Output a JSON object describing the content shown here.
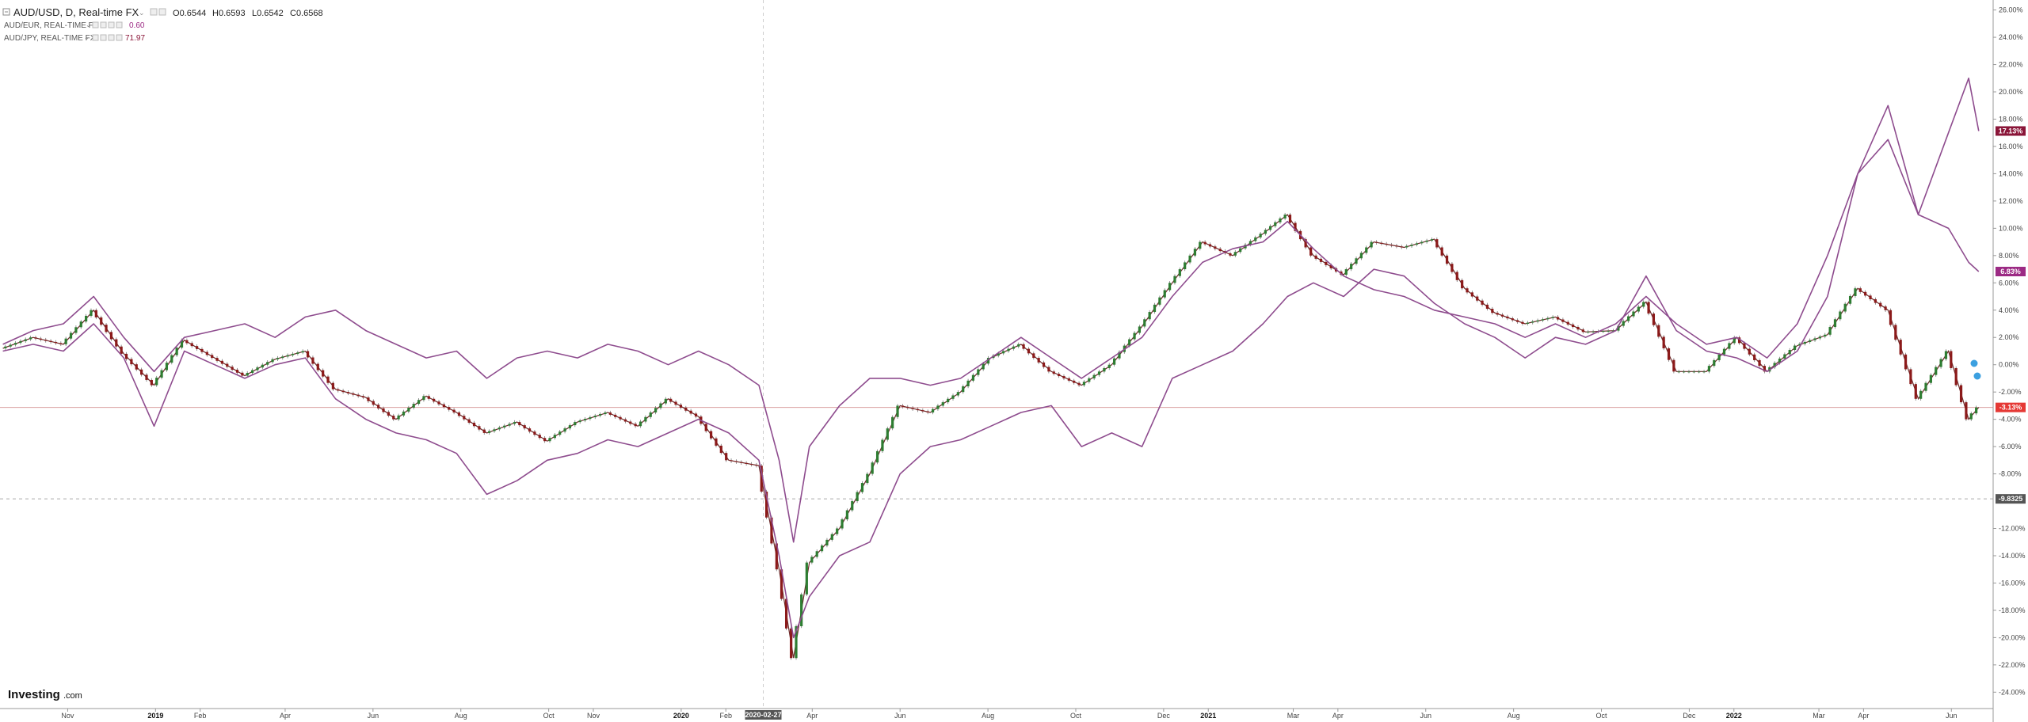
{
  "header": {
    "main_symbol": "AUD/USD, D, Real-time FX",
    "ohlc": [
      {
        "label": "O",
        "value": "0.6544"
      },
      {
        "label": "H",
        "value": "0.6593"
      },
      {
        "label": "L",
        "value": "0.6542"
      },
      {
        "label": "C",
        "value": "0.6568"
      }
    ],
    "comparisons": [
      {
        "label": "AUD/EUR, REAL-TIME FX",
        "value": "0.60"
      },
      {
        "label": "AUD/JPY, REAL-TIME FX",
        "value": "71.97"
      }
    ]
  },
  "brand": {
    "name": "Investing",
    "suffix": ".com"
  },
  "colors": {
    "up": "#2e7d32",
    "down": "#8b1a1a",
    "compare_line": "#8e4c8e",
    "badge_aud_eur": "#9c2a84",
    "badge_aud_jpy": "#8a1538",
    "badge_aud_usd": "#e53935",
    "badge_neutral": "#555555"
  },
  "chart_data": {
    "type": "line",
    "x_tick_labels": [
      {
        "label": "Nov",
        "date": "2018-11-01"
      },
      {
        "label": "2019",
        "date": "2019-01-01",
        "bold": true
      },
      {
        "label": "Feb",
        "date": "2019-02-01"
      },
      {
        "label": "Apr",
        "date": "2019-04-01"
      },
      {
        "label": "Jun",
        "date": "2019-06-01"
      },
      {
        "label": "Aug",
        "date": "2019-08-01"
      },
      {
        "label": "Oct",
        "date": "2019-10-01"
      },
      {
        "label": "Nov",
        "date": "2019-11-01"
      },
      {
        "label": "2020",
        "date": "2020-01-01",
        "bold": true
      },
      {
        "label": "Feb",
        "date": "2020-02-01"
      },
      {
        "label": "Apr",
        "date": "2020-04-01"
      },
      {
        "label": "Jun",
        "date": "2020-06-01"
      },
      {
        "label": "Aug",
        "date": "2020-08-01"
      },
      {
        "label": "Oct",
        "date": "2020-10-01"
      },
      {
        "label": "Dec",
        "date": "2020-12-01"
      },
      {
        "label": "2021",
        "date": "2021-01-01",
        "bold": true
      },
      {
        "label": "Mar",
        "date": "2021-03-01"
      },
      {
        "label": "Apr",
        "date": "2021-04-01"
      },
      {
        "label": "Jun",
        "date": "2021-06-01"
      },
      {
        "label": "Aug",
        "date": "2021-08-01"
      },
      {
        "label": "Oct",
        "date": "2021-10-01"
      },
      {
        "label": "Dec",
        "date": "2021-12-01"
      },
      {
        "label": "2022",
        "date": "2022-01-01",
        "bold": true
      },
      {
        "label": "Mar",
        "date": "2022-03-01"
      },
      {
        "label": "Apr",
        "date": "2022-04-01"
      },
      {
        "label": "Jun",
        "date": "2022-06-01"
      }
    ],
    "crosshair_date_label": "2020-02-27",
    "crosshair_date": "2020-02-27",
    "xlim": [
      "2018-09-15",
      "2022-06-30"
    ],
    "y_ticks": [
      26,
      24,
      22,
      20,
      18,
      16,
      14,
      12,
      10,
      8,
      6,
      4,
      2,
      0,
      -2,
      -4,
      -6,
      -8,
      -12,
      -14,
      -16,
      -18,
      -20,
      -22,
      -24
    ],
    "y_tick_labels": [
      "26.00%",
      "24.00%",
      "22.00%",
      "20.00%",
      "18.00%",
      "16.00%",
      "14.00%",
      "12.00%",
      "10.00%",
      "8.00%",
      "6.00%",
      "4.00%",
      "2.00%",
      "0.00%",
      "-2.00%",
      "-4.00%",
      "-6.00%",
      "-8.00%",
      "-12.00%",
      "-14.00%",
      "-16.00%",
      "-18.00%",
      "-20.00%",
      "-22.00%",
      "-24.00%"
    ],
    "ylim": [
      -25.2,
      26.5
    ],
    "y_unit": "%",
    "crosshair_level": -9.8325,
    "crosshair_level_label": "-9.8325",
    "last_value_badges": [
      {
        "series": "AUD/JPY",
        "value": 17.13,
        "label": "17.13%"
      },
      {
        "series": "AUD/EUR",
        "value": 6.83,
        "label": "6.83%"
      },
      {
        "series": "AUD/USD",
        "value": -3.13,
        "label": "-3.13%"
      }
    ],
    "series": [
      {
        "name": "AUD/USD",
        "style": "candlestick",
        "x": [
          "2018-09-17",
          "2018-10-08",
          "2018-10-29",
          "2018-11-19",
          "2018-12-10",
          "2018-12-31",
          "2019-01-21",
          "2019-02-11",
          "2019-03-04",
          "2019-03-25",
          "2019-04-15",
          "2019-05-06",
          "2019-05-27",
          "2019-06-17",
          "2019-07-08",
          "2019-07-29",
          "2019-08-19",
          "2019-09-09",
          "2019-09-30",
          "2019-10-21",
          "2019-11-11",
          "2019-12-02",
          "2019-12-23",
          "2020-01-13",
          "2020-02-03",
          "2020-02-24",
          "2020-03-09",
          "2020-03-19",
          "2020-03-30",
          "2020-04-20",
          "2020-05-11",
          "2020-06-01",
          "2020-06-22",
          "2020-07-13",
          "2020-08-03",
          "2020-08-24",
          "2020-09-14",
          "2020-10-05",
          "2020-10-26",
          "2020-11-16",
          "2020-12-07",
          "2020-12-28",
          "2021-01-18",
          "2021-02-08",
          "2021-02-25",
          "2021-03-15",
          "2021-04-05",
          "2021-04-26",
          "2021-05-17",
          "2021-06-07",
          "2021-06-28",
          "2021-07-19",
          "2021-08-09",
          "2021-08-30",
          "2021-09-20",
          "2021-10-11",
          "2021-11-01",
          "2021-11-22",
          "2021-12-13",
          "2022-01-03",
          "2022-01-24",
          "2022-02-14",
          "2022-03-07",
          "2022-03-28",
          "2022-04-18",
          "2022-05-09",
          "2022-05-30",
          "2022-06-13",
          "2022-06-20"
        ],
        "values": [
          1.2,
          2.0,
          1.5,
          4.0,
          0.8,
          -1.5,
          1.8,
          0.5,
          -0.8,
          0.4,
          1.0,
          -1.8,
          -2.4,
          -4.0,
          -2.3,
          -3.5,
          -5.0,
          -4.2,
          -5.6,
          -4.2,
          -3.5,
          -4.5,
          -2.5,
          -3.8,
          -7.0,
          -7.4,
          -15.0,
          -21.5,
          -14.5,
          -12.0,
          -8.0,
          -3.0,
          -3.5,
          -2.0,
          0.5,
          1.5,
          -0.5,
          -1.5,
          0.0,
          2.8,
          6.0,
          9.0,
          8.0,
          9.6,
          11.0,
          8.0,
          6.6,
          9.0,
          8.6,
          9.2,
          5.6,
          3.8,
          3.0,
          3.5,
          2.4,
          2.5,
          4.6,
          -0.5,
          -0.5,
          2.0,
          -0.5,
          1.4,
          2.2,
          5.6,
          4.0,
          -2.5,
          1.0,
          -4.0,
          -3.13
        ]
      },
      {
        "name": "AUD/EUR",
        "style": "line",
        "x": [
          "2018-09-17",
          "2018-10-08",
          "2018-10-29",
          "2018-11-19",
          "2018-12-10",
          "2018-12-31",
          "2019-01-21",
          "2019-02-11",
          "2019-03-04",
          "2019-03-25",
          "2019-04-15",
          "2019-05-06",
          "2019-05-27",
          "2019-06-17",
          "2019-07-08",
          "2019-07-29",
          "2019-08-19",
          "2019-09-09",
          "2019-09-30",
          "2019-10-21",
          "2019-11-11",
          "2019-12-02",
          "2019-12-23",
          "2020-01-13",
          "2020-02-03",
          "2020-02-24",
          "2020-03-09",
          "2020-03-19",
          "2020-03-30",
          "2020-04-20",
          "2020-05-11",
          "2020-06-01",
          "2020-06-22",
          "2020-07-13",
          "2020-08-03",
          "2020-08-24",
          "2020-09-14",
          "2020-10-05",
          "2020-10-26",
          "2020-11-16",
          "2020-12-07",
          "2020-12-28",
          "2021-01-18",
          "2021-02-08",
          "2021-02-25",
          "2021-03-15",
          "2021-04-05",
          "2021-04-26",
          "2021-05-17",
          "2021-06-07",
          "2021-06-28",
          "2021-07-19",
          "2021-08-09",
          "2021-08-30",
          "2021-09-20",
          "2021-10-11",
          "2021-11-01",
          "2021-11-22",
          "2021-12-13",
          "2022-01-03",
          "2022-01-24",
          "2022-02-14",
          "2022-03-07",
          "2022-03-28",
          "2022-04-18",
          "2022-05-09",
          "2022-05-30",
          "2022-06-13",
          "2022-06-20"
        ],
        "values": [
          1.5,
          2.5,
          3.0,
          5.0,
          2.0,
          -0.5,
          2.0,
          2.5,
          3.0,
          2.0,
          3.5,
          4.0,
          2.5,
          1.5,
          0.5,
          1.0,
          -1.0,
          0.5,
          1.0,
          0.5,
          1.5,
          1.0,
          0.0,
          1.0,
          0.0,
          -1.5,
          -7.0,
          -13.0,
          -6.0,
          -3.0,
          -1.0,
          -1.0,
          -1.5,
          -1.0,
          0.5,
          2.0,
          0.5,
          -1.0,
          0.5,
          2.0,
          5.0,
          7.5,
          8.5,
          9.0,
          10.5,
          8.5,
          6.5,
          5.5,
          5.0,
          4.0,
          3.5,
          3.0,
          2.0,
          3.0,
          2.0,
          3.0,
          5.0,
          3.0,
          1.5,
          2.0,
          0.5,
          3.0,
          8.0,
          14.0,
          16.5,
          11.0,
          10.0,
          7.5,
          6.83
        ]
      },
      {
        "name": "AUD/JPY",
        "style": "line",
        "x": [
          "2018-09-17",
          "2018-10-08",
          "2018-10-29",
          "2018-11-19",
          "2018-12-10",
          "2018-12-31",
          "2019-01-21",
          "2019-02-11",
          "2019-03-04",
          "2019-03-25",
          "2019-04-15",
          "2019-05-06",
          "2019-05-27",
          "2019-06-17",
          "2019-07-08",
          "2019-07-29",
          "2019-08-19",
          "2019-09-09",
          "2019-09-30",
          "2019-10-21",
          "2019-11-11",
          "2019-12-02",
          "2019-12-23",
          "2020-01-13",
          "2020-02-03",
          "2020-02-24",
          "2020-03-09",
          "2020-03-19",
          "2020-03-30",
          "2020-04-20",
          "2020-05-11",
          "2020-06-01",
          "2020-06-22",
          "2020-07-13",
          "2020-08-03",
          "2020-08-24",
          "2020-09-14",
          "2020-10-05",
          "2020-10-26",
          "2020-11-16",
          "2020-12-07",
          "2020-12-28",
          "2021-01-18",
          "2021-02-08",
          "2021-02-25",
          "2021-03-15",
          "2021-04-05",
          "2021-04-26",
          "2021-05-17",
          "2021-06-07",
          "2021-06-28",
          "2021-07-19",
          "2021-08-09",
          "2021-08-30",
          "2021-09-20",
          "2021-10-11",
          "2021-11-01",
          "2021-11-22",
          "2021-12-13",
          "2022-01-03",
          "2022-01-24",
          "2022-02-14",
          "2022-03-07",
          "2022-03-28",
          "2022-04-18",
          "2022-05-09",
          "2022-05-30",
          "2022-06-13",
          "2022-06-20"
        ],
        "values": [
          1.0,
          1.5,
          1.0,
          3.0,
          0.5,
          -4.5,
          1.0,
          0.0,
          -1.0,
          0.0,
          0.5,
          -2.5,
          -4.0,
          -5.0,
          -5.5,
          -6.5,
          -9.5,
          -8.5,
          -7.0,
          -6.5,
          -5.5,
          -6.0,
          -5.0,
          -4.0,
          -5.0,
          -7.0,
          -14.0,
          -20.0,
          -17.0,
          -14.0,
          -13.0,
          -8.0,
          -6.0,
          -5.5,
          -4.5,
          -3.5,
          -3.0,
          -6.0,
          -5.0,
          -6.0,
          -1.0,
          0.0,
          1.0,
          3.0,
          5.0,
          6.0,
          5.0,
          7.0,
          6.5,
          4.5,
          3.0,
          2.0,
          0.5,
          2.0,
          1.5,
          2.5,
          6.5,
          2.5,
          1.0,
          0.5,
          -0.5,
          1.0,
          5.0,
          14.0,
          19.0,
          11.0,
          17.0,
          21.0,
          17.13
        ]
      }
    ]
  }
}
